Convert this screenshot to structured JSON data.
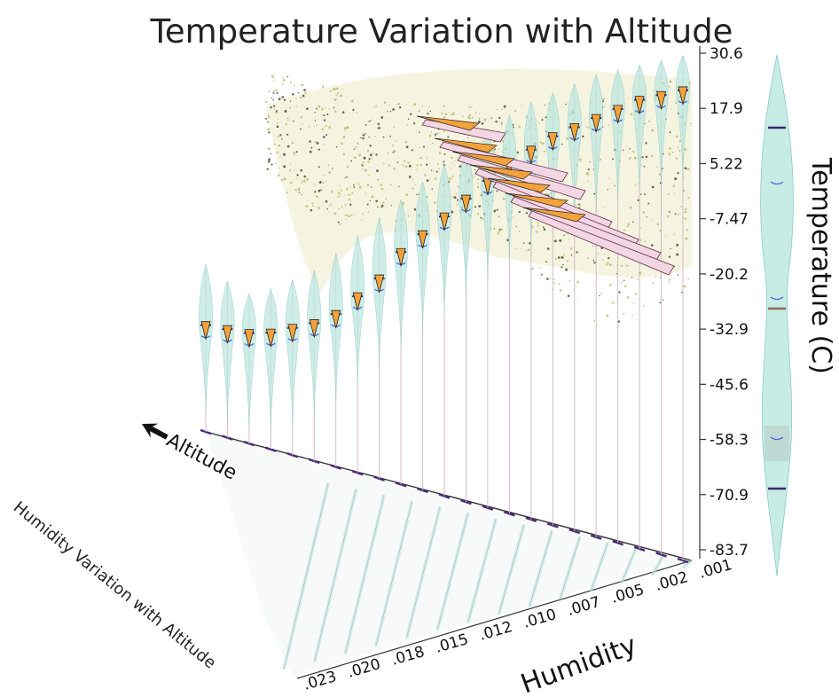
{
  "chart_data": {
    "type": "3d-violin",
    "title": "Temperature Variation with Altitude",
    "zlabel": "Temperature (C)",
    "ylabel": "Humidity",
    "xlabel": "Altitude",
    "floor_title": "Humidity Variation with Altitude",
    "zlim": [
      -83.7,
      30.6
    ],
    "z_ticks": [
      "30.6",
      "17.9",
      "5.22",
      "-7.47",
      "-20.2",
      "-32.9",
      "-45.6",
      "-58.3",
      "-70.9",
      "-83.7"
    ],
    "humidity_ticks": [
      ".023",
      ".020",
      ".018",
      ".015",
      ".012",
      ".010",
      ".007",
      ".005",
      ".002",
      ".001"
    ],
    "humidity_lim": [
      0.001,
      0.023
    ],
    "altitude_slices": [
      {
        "humidity": 0.023,
        "temp_median": -32,
        "temp_min": -40,
        "temp_max": -18
      },
      {
        "humidity": 0.022,
        "temp_median": -33,
        "temp_min": -42,
        "temp_max": -22
      },
      {
        "humidity": 0.021,
        "temp_median": -34,
        "temp_min": -44,
        "temp_max": -25
      },
      {
        "humidity": 0.02,
        "temp_median": -34,
        "temp_min": -44,
        "temp_max": -24
      },
      {
        "humidity": 0.019,
        "temp_median": -33,
        "temp_min": -43,
        "temp_max": -22
      },
      {
        "humidity": 0.018,
        "temp_median": -32,
        "temp_min": -41,
        "temp_max": -20
      },
      {
        "humidity": 0.017,
        "temp_median": -30,
        "temp_min": -38,
        "temp_max": -16
      },
      {
        "humidity": 0.016,
        "temp_median": -26,
        "temp_min": -34,
        "temp_max": -12
      },
      {
        "humidity": 0.015,
        "temp_median": -22,
        "temp_min": -30,
        "temp_max": -8
      },
      {
        "humidity": 0.014,
        "temp_median": -16,
        "temp_min": -26,
        "temp_max": -4
      },
      {
        "humidity": 0.013,
        "temp_median": -12,
        "temp_min": -22,
        "temp_max": 0
      },
      {
        "humidity": 0.012,
        "temp_median": -8,
        "temp_min": -18,
        "temp_max": 4
      },
      {
        "humidity": 0.011,
        "temp_median": -4,
        "temp_min": -14,
        "temp_max": 8
      },
      {
        "humidity": 0.01,
        "temp_median": 0,
        "temp_min": -10,
        "temp_max": 12
      },
      {
        "humidity": 0.009,
        "temp_median": 4,
        "temp_min": -6,
        "temp_max": 15
      },
      {
        "humidity": 0.008,
        "temp_median": 7,
        "temp_min": -3,
        "temp_max": 18
      },
      {
        "humidity": 0.007,
        "temp_median": 10,
        "temp_min": 0,
        "temp_max": 20
      },
      {
        "humidity": 0.006,
        "temp_median": 12,
        "temp_min": 2,
        "temp_max": 22
      },
      {
        "humidity": 0.005,
        "temp_median": 14,
        "temp_min": 5,
        "temp_max": 24
      },
      {
        "humidity": 0.004,
        "temp_median": 16,
        "temp_min": 7,
        "temp_max": 25
      },
      {
        "humidity": 0.003,
        "temp_median": 18,
        "temp_min": 9,
        "temp_max": 26
      },
      {
        "humidity": 0.002,
        "temp_median": 19,
        "temp_min": 10,
        "temp_max": 27
      },
      {
        "humidity": 0.001,
        "temp_median": 20,
        "temp_min": 12,
        "temp_max": 28
      }
    ]
  }
}
